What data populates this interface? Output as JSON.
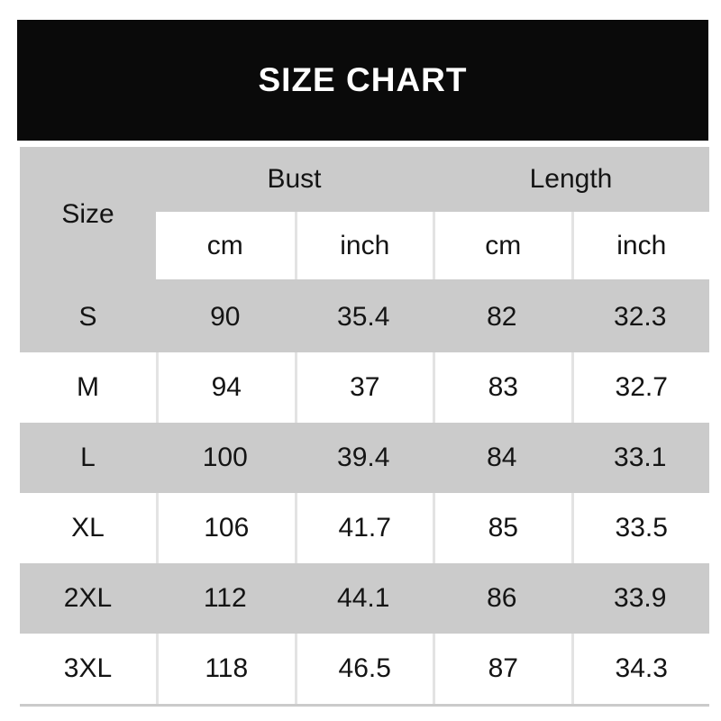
{
  "banner": {
    "title": "SIZE CHART"
  },
  "table": {
    "header": {
      "size_label": "Size",
      "groups": [
        {
          "label": "Bust"
        },
        {
          "label": "Length"
        }
      ],
      "units": [
        "cm",
        "inch",
        "cm",
        "inch"
      ]
    },
    "rows": [
      {
        "size": "S",
        "bust_cm": "90",
        "bust_inch": "35.4",
        "length_cm": "82",
        "length_inch": "32.3"
      },
      {
        "size": "M",
        "bust_cm": "94",
        "bust_inch": "37",
        "length_cm": "83",
        "length_inch": "32.7"
      },
      {
        "size": "L",
        "bust_cm": "100",
        "bust_inch": "39.4",
        "length_cm": "84",
        "length_inch": "33.1"
      },
      {
        "size": "XL",
        "bust_cm": "106",
        "bust_inch": "41.7",
        "length_cm": "85",
        "length_inch": "33.5"
      },
      {
        "size": "2XL",
        "bust_cm": "112",
        "bust_inch": "44.1",
        "length_cm": "86",
        "length_inch": "33.9"
      },
      {
        "size": "3XL",
        "bust_cm": "118",
        "bust_inch": "46.5",
        "length_cm": "87",
        "length_inch": "34.3"
      }
    ]
  },
  "colors": {
    "banner_bg": "#0a0a0a",
    "banner_text": "#ffffff",
    "row_gray": "#cbcbcb",
    "row_white": "#ffffff",
    "divider": "#e3e3e3",
    "text": "#141414"
  },
  "chart_data": {
    "type": "table",
    "title": "SIZE CHART",
    "column_groups": [
      {
        "label": "Size",
        "span": 1
      },
      {
        "label": "Bust",
        "span": 2
      },
      {
        "label": "Length",
        "span": 2
      }
    ],
    "columns": [
      "Size",
      "Bust cm",
      "Bust inch",
      "Length cm",
      "Length inch"
    ],
    "units_row": [
      "",
      "cm",
      "inch",
      "cm",
      "inch"
    ],
    "rows": [
      [
        "S",
        90,
        35.4,
        82,
        32.3
      ],
      [
        "M",
        94,
        37,
        83,
        32.7
      ],
      [
        "L",
        100,
        39.4,
        84,
        33.1
      ],
      [
        "XL",
        106,
        41.7,
        85,
        33.5
      ],
      [
        "2XL",
        112,
        44.1,
        86,
        33.9
      ],
      [
        "3XL",
        118,
        46.5,
        87,
        34.3
      ]
    ],
    "layout_hints": {
      "striped_rows": "gray/white alternating starting gray",
      "header_banner": "black bar with white bold title"
    }
  }
}
